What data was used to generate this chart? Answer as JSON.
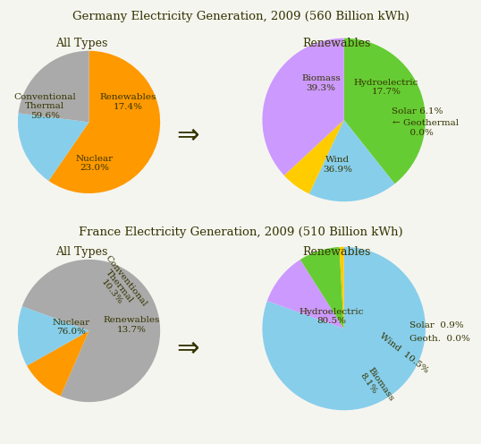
{
  "title_germany": "Germany Electricity Generation, 2009 (560 Billion kWh)",
  "title_france": "France Electricity Generation, 2009 (510 Billion kWh)",
  "subtitle_all": "All Types",
  "subtitle_renewables": "Renewables",
  "germany_all_labels": [
    "Conventional\nThermal",
    "Renewables",
    "Nuclear"
  ],
  "germany_all_values": [
    59.6,
    17.4,
    23.0
  ],
  "germany_all_colors": [
    "#FF9900",
    "#87CEEB",
    "#AAAAAA"
  ],
  "germany_all_startangle": 90,
  "germany_ren_labels": [
    "Biomass",
    "Hydroelectric",
    "Solar",
    "Geothermal",
    "Wind"
  ],
  "germany_ren_values": [
    39.3,
    17.7,
    6.1,
    0.0001,
    36.9
  ],
  "germany_ren_colors": [
    "#66CC33",
    "#87CEEB",
    "#FFCC00",
    "#FF6666",
    "#CC99FF"
  ],
  "germany_ren_startangle": 90,
  "france_all_labels": [
    "Nuclear",
    "Conventional\nThermal",
    "Renewables"
  ],
  "france_all_values": [
    76.0,
    10.3,
    13.7
  ],
  "france_all_colors": [
    "#AAAAAA",
    "#FF9900",
    "#87CEEB"
  ],
  "france_all_startangle": 160,
  "france_ren_labels": [
    "Hydroelectric",
    "Wind",
    "Biomass",
    "Solar",
    "Geothermal"
  ],
  "france_ren_values": [
    80.5,
    10.5,
    8.1,
    0.9,
    0.0001
  ],
  "france_ren_colors": [
    "#87CEEB",
    "#CC99FF",
    "#66CC33",
    "#FFCC00",
    "#FF6666"
  ],
  "france_ren_startangle": 90,
  "bg_color": "#F5F5F0",
  "text_color": "#333300",
  "label_fontsize": 7.5,
  "title_fontsize": 9.5
}
